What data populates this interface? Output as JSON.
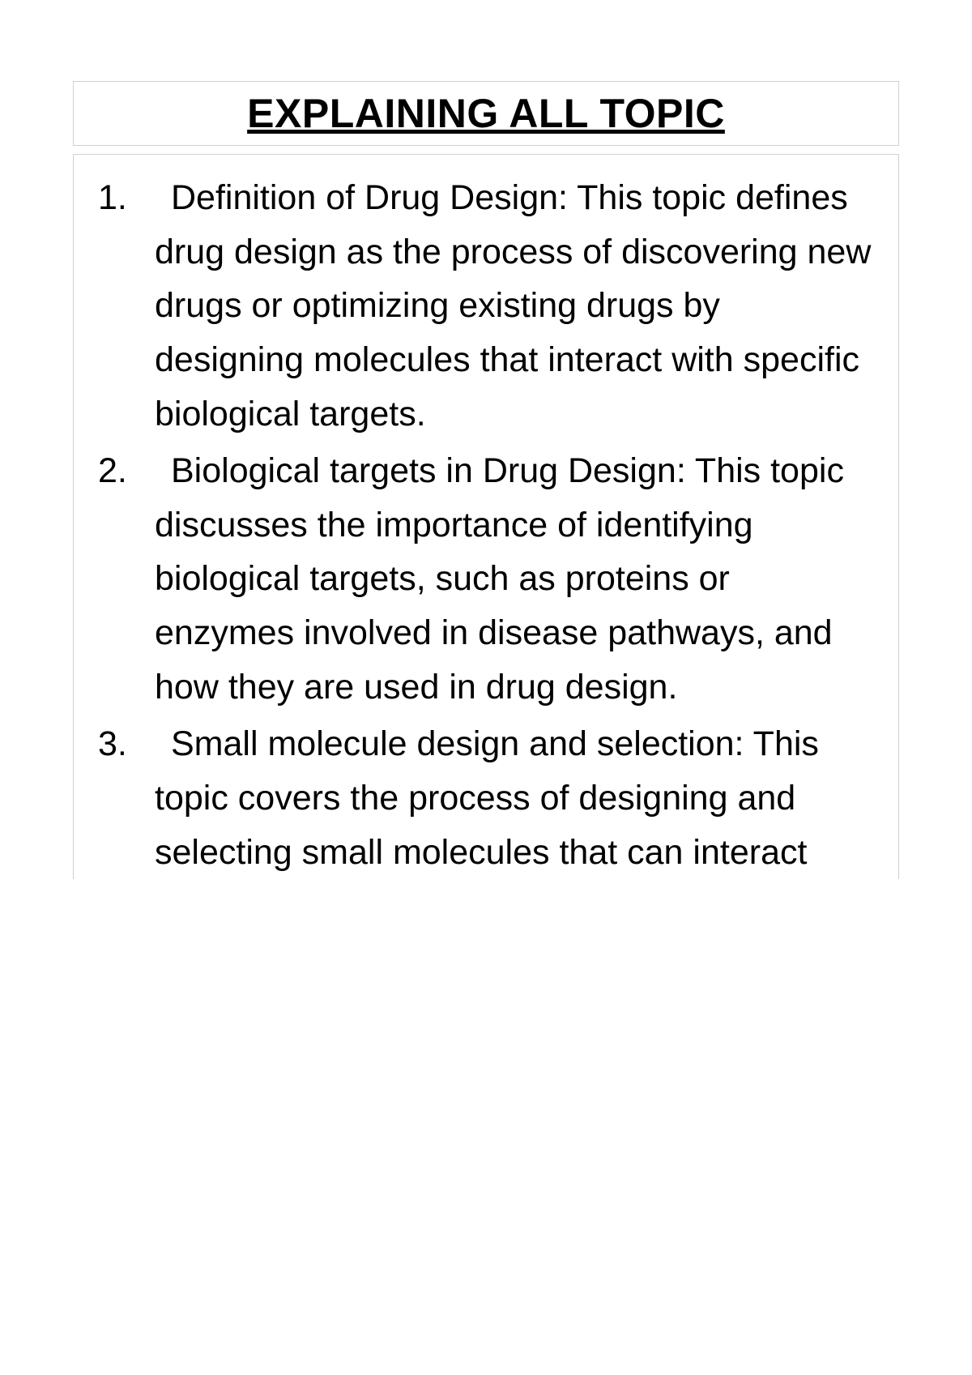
{
  "title": "EXPLAINING ALL TOPIC",
  "items": [
    "Definition of Drug Design: This topic defines drug design as the process of discovering new drugs or optimizing existing drugs by designing molecules that interact with specific biological targets.",
    "Biological targets in Drug Design: This topic discusses the importance of identifying biological targets, such as proteins or enzymes involved in disease pathways, and how they are used in drug design.",
    "Small molecule design and selection: This topic covers the process of designing and selecting small molecules that can interact"
  ],
  "colors": {
    "background": "#ffffff",
    "text": "#000000",
    "border": "#d0d0d0"
  },
  "typography": {
    "title_fontsize": 50,
    "title_weight": 700,
    "body_fontsize": 43,
    "line_height": 1.55,
    "font_family": "Segoe UI"
  }
}
